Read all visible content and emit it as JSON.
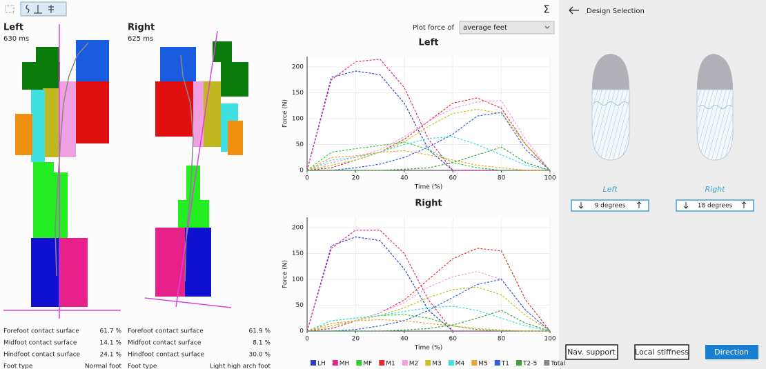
{
  "toolbar": {
    "sigma": "Σ"
  },
  "feet": [
    {
      "title": "Left",
      "duration": "630 ms",
      "stats": [
        [
          "Forefoot contact surface",
          "61.7 %"
        ],
        [
          "Midfoot contact surface",
          "14.1 %"
        ],
        [
          "Hindfoot contact surface",
          "24.1 %"
        ],
        [
          "Foot type",
          "Normal foot"
        ]
      ]
    },
    {
      "title": "Right",
      "duration": "625 ms",
      "stats": [
        [
          "Forefoot contact surface",
          "61.9 %"
        ],
        [
          "Midfoot contact surface",
          "8.1 %"
        ],
        [
          "Hindfoot contact surface",
          "30.0 %"
        ],
        [
          "Foot type",
          "Light high arch foot"
        ]
      ]
    }
  ],
  "plot_force": {
    "label": "Plot force of",
    "value": "average feet"
  },
  "chart_data": [
    {
      "type": "line",
      "title": "Left",
      "xlabel": "Time (%)",
      "ylabel": "Force (N)",
      "x": [
        0,
        10,
        20,
        30,
        40,
        50,
        60,
        70,
        80,
        90,
        100
      ],
      "xlim": [
        0,
        100
      ],
      "xticks": [
        0,
        20,
        40,
        60,
        80,
        100
      ],
      "ylim": [
        0,
        220
      ],
      "yticks": [
        0,
        50,
        100,
        150,
        200
      ],
      "grid": true,
      "series": [
        {
          "name": "LH",
          "color": "#2a3fc0",
          "values": [
            0,
            180,
            192,
            185,
            130,
            40,
            0,
            0,
            0,
            0,
            0
          ]
        },
        {
          "name": "MH",
          "color": "#e0288a",
          "values": [
            0,
            175,
            210,
            215,
            160,
            60,
            0,
            0,
            0,
            0,
            0
          ]
        },
        {
          "name": "MF",
          "color": "#33cc33",
          "values": [
            0,
            35,
            42,
            48,
            55,
            40,
            15,
            5,
            0,
            0,
            0
          ]
        },
        {
          "name": "M1",
          "color": "#e03030",
          "values": [
            0,
            5,
            20,
            35,
            60,
            95,
            130,
            140,
            120,
            50,
            0
          ]
        },
        {
          "name": "M2",
          "color": "#f0a0e0",
          "values": [
            0,
            15,
            25,
            40,
            65,
            95,
            120,
            132,
            135,
            60,
            0
          ]
        },
        {
          "name": "M3",
          "color": "#c8c020",
          "values": [
            0,
            10,
            20,
            35,
            55,
            85,
            110,
            118,
            110,
            50,
            0
          ]
        },
        {
          "name": "M4",
          "color": "#40e0e0",
          "values": [
            0,
            20,
            25,
            35,
            50,
            62,
            65,
            50,
            30,
            10,
            0
          ]
        },
        {
          "name": "M5",
          "color": "#f0a030",
          "values": [
            0,
            25,
            28,
            35,
            38,
            30,
            20,
            10,
            5,
            0,
            0
          ]
        },
        {
          "name": "T1",
          "color": "#3060e0",
          "values": [
            0,
            0,
            5,
            12,
            25,
            45,
            70,
            105,
            112,
            40,
            0
          ]
        },
        {
          "name": "T2-5",
          "color": "#40a040",
          "values": [
            0,
            0,
            0,
            0,
            2,
            5,
            15,
            30,
            45,
            15,
            0
          ]
        },
        {
          "name": "Total",
          "color": "#888888",
          "values": [
            null,
            null,
            null,
            null,
            null,
            null,
            null,
            null,
            null,
            null,
            null
          ]
        }
      ]
    },
    {
      "type": "line",
      "title": "Right",
      "xlabel": "Time (%)",
      "ylabel": "Force (N)",
      "x": [
        0,
        10,
        20,
        30,
        40,
        50,
        60,
        70,
        80,
        90,
        100
      ],
      "xlim": [
        0,
        100
      ],
      "xticks": [
        0,
        20,
        40,
        60,
        80,
        100
      ],
      "ylim": [
        0,
        220
      ],
      "yticks": [
        0,
        50,
        100,
        150,
        200
      ],
      "grid": true,
      "series": [
        {
          "name": "LH",
          "color": "#2a3fc0",
          "values": [
            0,
            165,
            182,
            175,
            120,
            40,
            0,
            0,
            0,
            0,
            0
          ]
        },
        {
          "name": "MH",
          "color": "#e0288a",
          "values": [
            0,
            160,
            195,
            195,
            150,
            60,
            0,
            0,
            0,
            0,
            0
          ]
        },
        {
          "name": "MF",
          "color": "#33cc33",
          "values": [
            0,
            20,
            25,
            30,
            32,
            25,
            10,
            3,
            0,
            0,
            0
          ]
        },
        {
          "name": "M1",
          "color": "#e03030",
          "values": [
            0,
            5,
            20,
            35,
            60,
            100,
            140,
            160,
            155,
            60,
            0
          ]
        },
        {
          "name": "M2",
          "color": "#f0a0e0",
          "values": [
            0,
            10,
            20,
            35,
            55,
            85,
            105,
            115,
            100,
            40,
            0
          ]
        },
        {
          "name": "M3",
          "color": "#c8c020",
          "values": [
            0,
            10,
            20,
            30,
            45,
            65,
            80,
            85,
            70,
            30,
            0
          ]
        },
        {
          "name": "M4",
          "color": "#40e0e0",
          "values": [
            0,
            20,
            25,
            30,
            38,
            45,
            48,
            40,
            25,
            10,
            0
          ]
        },
        {
          "name": "M5",
          "color": "#f0a030",
          "values": [
            0,
            15,
            20,
            22,
            20,
            15,
            10,
            5,
            2,
            0,
            0
          ]
        },
        {
          "name": "T1",
          "color": "#3060e0",
          "values": [
            0,
            0,
            3,
            10,
            20,
            40,
            65,
            90,
            100,
            40,
            0
          ]
        },
        {
          "name": "T2-5",
          "color": "#40a040",
          "values": [
            0,
            0,
            0,
            0,
            2,
            5,
            12,
            25,
            40,
            15,
            0
          ]
        },
        {
          "name": "Total",
          "color": "#888888",
          "values": [
            null,
            null,
            null,
            null,
            null,
            null,
            null,
            null,
            null,
            null,
            null
          ]
        }
      ]
    }
  ],
  "panel": {
    "back": "Design Selection",
    "shoes": [
      {
        "label": "Left",
        "angle": "9 degrees"
      },
      {
        "label": "Right",
        "angle": "18 degrees"
      }
    ],
    "buttons": [
      "Nav. support",
      "Local stiffness",
      "Direction"
    ]
  }
}
